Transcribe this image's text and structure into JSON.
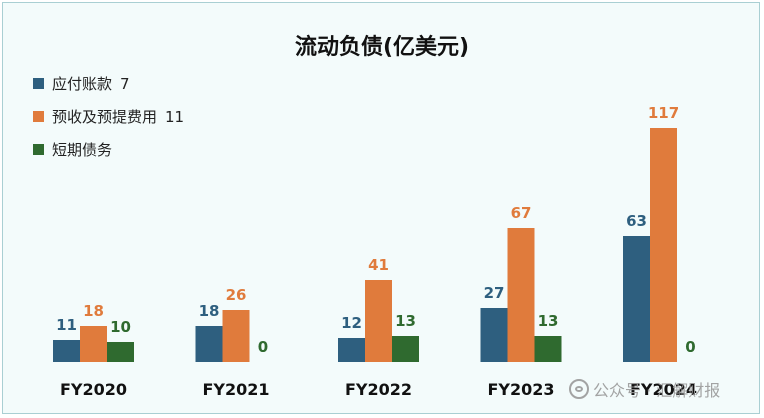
{
  "chart_data": {
    "type": "bar",
    "title": "流动负债(亿美元)",
    "categories": [
      "FY2020",
      "FY2021",
      "FY2022",
      "FY2023",
      "FY2024"
    ],
    "series": [
      {
        "name": "应付账款",
        "legend_value": "7",
        "color": "#2e5f7f",
        "values": [
          11,
          18,
          12,
          27,
          63
        ]
      },
      {
        "name": "预收及预提费用",
        "legend_value": "11",
        "color": "#e07b3c",
        "values": [
          18,
          26,
          41,
          67,
          117
        ]
      },
      {
        "name": "短期债务",
        "legend_value": "",
        "color": "#2f6a2f",
        "values": [
          10,
          0,
          13,
          13,
          0
        ]
      }
    ],
    "ylim": [
      0,
      117
    ],
    "grid": false,
    "legend_position": "top-left"
  },
  "watermark": {
    "icon": "wechat-icon",
    "text": "公众号 · 汇解财报"
  }
}
